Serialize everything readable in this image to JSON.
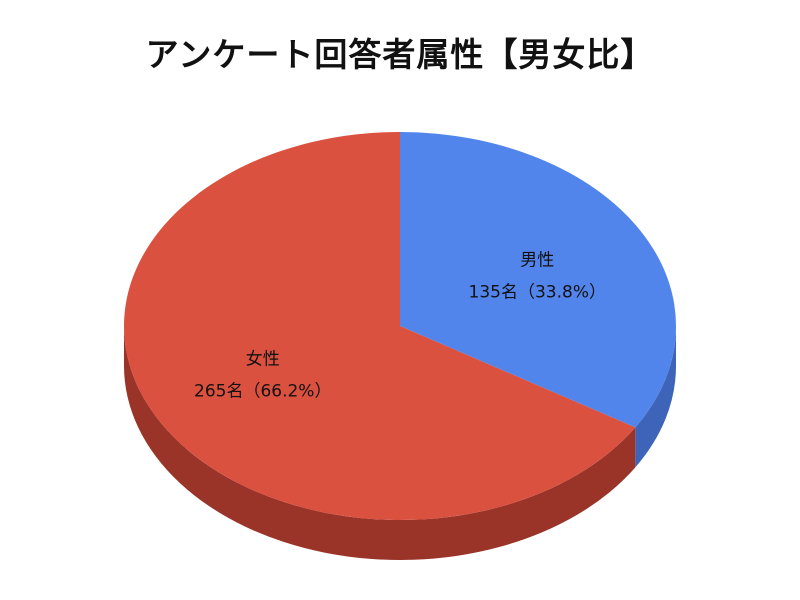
{
  "chart_data": {
    "type": "pie",
    "title": "アンケート回答者属性【男女比】",
    "slices": [
      {
        "name": "男性",
        "value": 135,
        "label_value": "135名（33.8%）",
        "percent": 33.8,
        "color": "#5285EC",
        "side_color": "#3D64B8"
      },
      {
        "name": "女性",
        "value": 265,
        "label_value": "265名（66.2%）",
        "percent": 66.2,
        "color": "#DA5140",
        "side_color": "#9A3429"
      }
    ]
  }
}
